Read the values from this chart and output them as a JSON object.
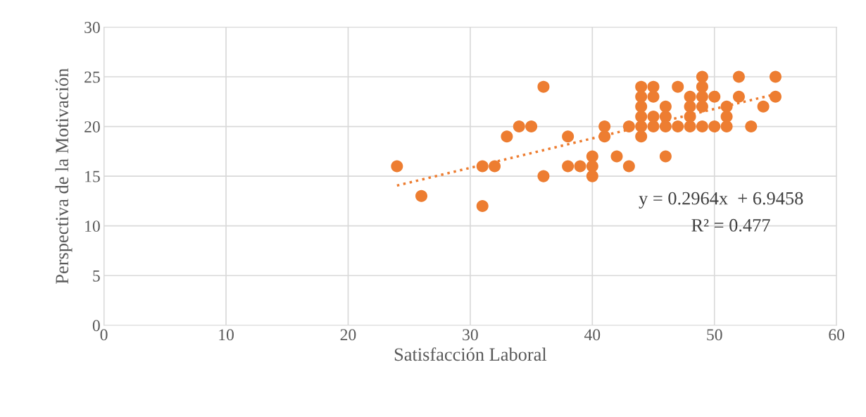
{
  "chart_data": {
    "type": "scatter",
    "xlabel": "Satisfacción Laboral",
    "ylabel": "Perspectiva de la Motivación",
    "xlim": [
      0,
      60
    ],
    "xticks": [
      0,
      10,
      20,
      30,
      40,
      50,
      60
    ],
    "ylim": [
      0,
      30
    ],
    "yticks": [
      0,
      5,
      10,
      15,
      20,
      25,
      30
    ],
    "grid": true,
    "legend": false,
    "series": [
      {
        "color": "#ed7d31",
        "marker": "circle",
        "x": [
          24,
          26,
          31,
          31,
          32,
          33,
          34,
          35,
          36,
          36,
          38,
          38,
          39,
          40,
          40,
          40,
          41,
          41,
          42,
          43,
          43,
          44,
          44,
          44,
          44,
          44,
          44,
          45,
          45,
          45,
          45,
          46,
          46,
          46,
          46,
          47,
          47,
          48,
          48,
          48,
          48,
          49,
          49,
          49,
          49,
          49,
          50,
          50,
          51,
          51,
          51,
          52,
          52,
          53,
          54,
          55,
          55
        ],
        "values": [
          16,
          13,
          16,
          12,
          16,
          19,
          20,
          20,
          24,
          15,
          19,
          16,
          16,
          17,
          16,
          15,
          20,
          19,
          17,
          20,
          16,
          24,
          23,
          22,
          21,
          20,
          19,
          24,
          23,
          21,
          20,
          22,
          21,
          20,
          17,
          24,
          20,
          23,
          22,
          21,
          20,
          25,
          24,
          23,
          22,
          20,
          23,
          20,
          22,
          21,
          20,
          25,
          23,
          20,
          22,
          25,
          23
        ]
      },
      {
        "type": "line",
        "color": "#ed7d31",
        "line_style": "dotted",
        "marker": "none",
        "x": [
          24,
          55
        ],
        "values": [
          14.06,
          23.25
        ]
      }
    ],
    "annotations": [
      "y = 0.2964x  + 6.9458",
      "R² = 0.477"
    ]
  }
}
